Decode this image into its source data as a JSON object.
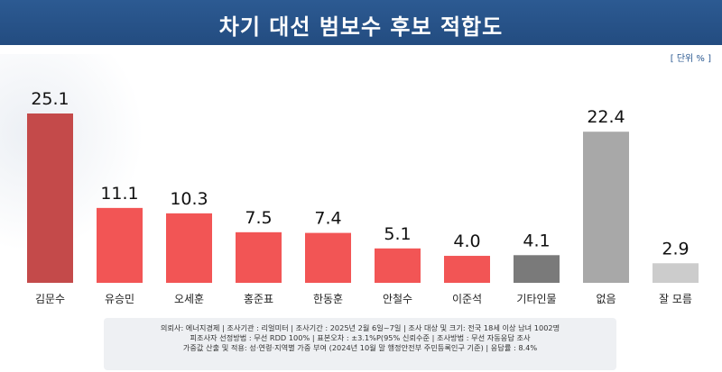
{
  "header": {
    "title": "차기 대선 범보수 후보 적합도"
  },
  "unit_label": "[ 단위 % ]",
  "colors": {
    "header_bg": "#2c5a92",
    "highlight_bar": "#c44a4a",
    "candidate_bar": "#f25555",
    "other_bar": "#7a7a7a",
    "none_bar": "#a8a8a8",
    "dontknow_bar": "#cccccc"
  },
  "chart_data": {
    "type": "bar",
    "title": "차기 대선 범보수 후보 적합도",
    "unit": "%",
    "categories": [
      "김문수",
      "유승민",
      "오세훈",
      "홍준표",
      "한동훈",
      "안철수",
      "이준석",
      "기타인물",
      "없음",
      "잘 모름"
    ],
    "values": [
      25.1,
      11.1,
      10.3,
      7.5,
      7.4,
      5.1,
      4.0,
      4.1,
      22.4,
      2.9
    ],
    "value_labels": [
      "25.1",
      "11.1",
      "10.3",
      "7.5",
      "7.4",
      "5.1",
      "4.0",
      "4.1",
      "22.4",
      "2.9"
    ],
    "bar_colors": [
      "#c44a4a",
      "#f25555",
      "#f25555",
      "#f25555",
      "#f25555",
      "#f25555",
      "#f25555",
      "#7a7a7a",
      "#a8a8a8",
      "#cccccc"
    ],
    "ylim": [
      0,
      25.1
    ],
    "grid": false,
    "legend": "none"
  },
  "footer": {
    "lines": [
      "의뢰사: 에너지경제 | 조사기관 : 리얼미터 | 조사기간 : 2025년 2월 6일~7일 | 조사 대상 및 크기: 전국 18세 이상 남녀 1002명",
      "피조사자 선정방법 : 무선 RDD 100% | 표본오차 : ±3.1%P(95% 신뢰수준 | 조사방법 : 무선 자동응답 조사",
      "가중값 산출 및 적용: 성·연령·지역별 가중 부여 (2024년 10월 말 행정안전부 주민등록인구 기준) | 응답률 : 8.4%"
    ]
  }
}
